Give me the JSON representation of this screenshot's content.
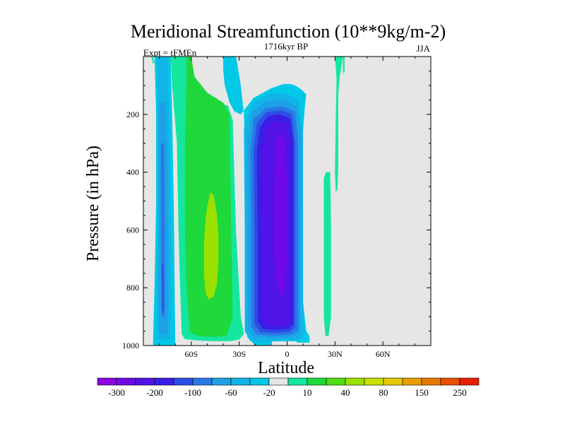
{
  "chart_data": {
    "type": "contour",
    "title": "Meridional Streamfunction (10**9kg/m-2)",
    "subtitle_center": "1716kyr BP",
    "subtitle_left": "Expt = tFMEn",
    "subtitle_right": "JJA",
    "xlabel": "Latitude",
    "ylabel": "Pressure (in hPa)",
    "xlim": [
      -90,
      90
    ],
    "ylim": [
      1000,
      0
    ],
    "x_ticks": [
      {
        "value": -60,
        "label": "60S"
      },
      {
        "value": -30,
        "label": "30S"
      },
      {
        "value": 0,
        "label": "0"
      },
      {
        "value": 30,
        "label": "30N"
      },
      {
        "value": 60,
        "label": "60N"
      }
    ],
    "y_ticks": [
      {
        "value": 200,
        "label": "200"
      },
      {
        "value": 400,
        "label": "400"
      },
      {
        "value": 600,
        "label": "600"
      },
      {
        "value": 800,
        "label": "800"
      },
      {
        "value": 1000,
        "label": "1000"
      }
    ],
    "missing_color": "#e6e6e6",
    "colorbar": {
      "colors": [
        "#8c00e6",
        "#6f0ae6",
        "#5214e6",
        "#3a1ee6",
        "#2a4ee6",
        "#2a78e6",
        "#1ea0e6",
        "#10b4e6",
        "#00c8e6",
        "#e6e6e6",
        "#14e6a0",
        "#1ed83c",
        "#50dc14",
        "#9ae100",
        "#c8e100",
        "#e6c800",
        "#e6a000",
        "#e67800",
        "#e65000",
        "#e61e00"
      ],
      "labels": [
        "-300",
        "-200",
        "-100",
        "-60",
        "-20",
        "10",
        "40",
        "80",
        "150",
        "250"
      ]
    },
    "regions": [
      {
        "name": "sh-cell-outer",
        "level": "-20 to -10",
        "color": "#00c8e6",
        "polygon": [
          [
            -40,
            0
          ],
          [
            -32,
            0
          ],
          [
            -31,
            30
          ],
          [
            -29,
            100
          ],
          [
            -27,
            200
          ],
          [
            -25,
            600
          ],
          [
            -25,
            970
          ],
          [
            -20,
            1000
          ],
          [
            -11,
            1000
          ],
          [
            -9,
            985
          ],
          [
            6,
            985
          ],
          [
            6,
            990
          ],
          [
            14,
            990
          ],
          [
            14,
            968
          ],
          [
            12,
            950
          ],
          [
            10,
            850
          ],
          [
            10,
            500
          ],
          [
            10,
            260
          ],
          [
            11,
            180
          ],
          [
            12,
            130
          ],
          [
            8,
            110
          ],
          [
            5,
            100
          ],
          [
            2,
            95
          ],
          [
            -2,
            95
          ],
          [
            -5,
            100
          ],
          [
            -10,
            110
          ],
          [
            -15,
            125
          ],
          [
            -21,
            143
          ],
          [
            -24,
            165
          ],
          [
            -29,
            200
          ],
          [
            -33,
            190
          ],
          [
            -36,
            160
          ],
          [
            -39,
            100
          ],
          [
            -40,
            50
          ]
        ]
      },
      {
        "name": "sh-cell-l30",
        "level": "-30 to -20",
        "color": "#10b4e6",
        "polygon": [
          [
            -27,
            250
          ],
          [
            -26.5,
            600
          ],
          [
            -26.5,
            950
          ],
          [
            -23,
            985
          ],
          [
            -15,
            988
          ],
          [
            -5,
            983
          ],
          [
            5,
            983
          ],
          [
            10,
            970
          ],
          [
            10,
            500
          ],
          [
            10,
            260
          ],
          [
            7,
            150
          ],
          [
            -2,
            125
          ],
          [
            -12,
            130
          ],
          [
            -22,
            165
          ]
        ]
      },
      {
        "name": "sh-cell-l40",
        "level": "-40 to -30",
        "color": "#1ea0e6",
        "polygon": [
          [
            -25,
            300
          ],
          [
            -24.5,
            600
          ],
          [
            -24.5,
            945
          ],
          [
            -21,
            970
          ],
          [
            -10,
            975
          ],
          [
            3,
            972
          ],
          [
            8,
            955
          ],
          [
            9,
            500
          ],
          [
            9,
            280
          ],
          [
            6,
            170
          ],
          [
            -3,
            150
          ],
          [
            -13,
            155
          ],
          [
            -22,
            190
          ]
        ]
      },
      {
        "name": "sh-cell-l60",
        "level": "-60 to -40",
        "color": "#2a78e6",
        "polygon": [
          [
            -23,
            330
          ],
          [
            -22.5,
            600
          ],
          [
            -22.5,
            935
          ],
          [
            -19,
            962
          ],
          [
            -8,
            966
          ],
          [
            3,
            962
          ],
          [
            7,
            945
          ],
          [
            7,
            500
          ],
          [
            7,
            300
          ],
          [
            5,
            190
          ],
          [
            -3,
            172
          ],
          [
            -13,
            178
          ],
          [
            -21,
            215
          ]
        ]
      },
      {
        "name": "sh-cell-l80",
        "level": "-80 to -60",
        "color": "#2a4ee6",
        "polygon": [
          [
            -21,
            330
          ],
          [
            -20.5,
            600
          ],
          [
            -20.5,
            925
          ],
          [
            -17,
            953
          ],
          [
            -7,
            957
          ],
          [
            2,
            952
          ],
          [
            5,
            935
          ],
          [
            5,
            500
          ],
          [
            5,
            300
          ],
          [
            3,
            200
          ],
          [
            -4,
            186
          ],
          [
            -13,
            192
          ],
          [
            -19,
            230
          ]
        ]
      },
      {
        "name": "sh-cell-l100",
        "level": "-100 to -80",
        "color": "#3a1ee6",
        "polygon": [
          [
            -19,
            330
          ],
          [
            -18.5,
            600
          ],
          [
            -18.5,
            915
          ],
          [
            -15,
            943
          ],
          [
            -7,
            947
          ],
          [
            1,
            942
          ],
          [
            4,
            925
          ],
          [
            4,
            500
          ],
          [
            4,
            300
          ],
          [
            2,
            215
          ],
          [
            -5,
            200
          ],
          [
            -12,
            206
          ],
          [
            -17,
            245
          ]
        ]
      },
      {
        "name": "sh-cell-l200",
        "level": "-200 to -100",
        "color": "#5214e6",
        "polygon": [
          [
            -16,
            330
          ],
          [
            -15.5,
            600
          ],
          [
            -15.5,
            900
          ],
          [
            -12,
            932
          ],
          [
            -6,
            936
          ],
          [
            0,
            930
          ],
          [
            2,
            910
          ],
          [
            2,
            500
          ],
          [
            2,
            300
          ],
          [
            0,
            235
          ],
          [
            -6,
            222
          ],
          [
            -11,
            228
          ],
          [
            -14,
            262
          ]
        ]
      },
      {
        "name": "sh-cell-core",
        "level": "-300 to -200",
        "color": "#6f0ae6",
        "polygon": [
          [
            -7,
            300
          ],
          [
            -8,
            450
          ],
          [
            -8,
            700
          ],
          [
            -6,
            800
          ],
          [
            -3,
            830
          ],
          [
            -1,
            800
          ],
          [
            0,
            700
          ],
          [
            0,
            450
          ],
          [
            -1,
            300
          ],
          [
            -3,
            265
          ],
          [
            -5,
            268
          ]
        ]
      },
      {
        "name": "sh-ferrel-cyan",
        "level": "-20 to -10",
        "color": "#00c8e6",
        "polygon": [
          [
            -83,
            0
          ],
          [
            -73,
            0
          ],
          [
            -72,
            200
          ],
          [
            -71,
            500
          ],
          [
            -70,
            1000
          ],
          [
            -84,
            1000
          ],
          [
            -83,
            800
          ],
          [
            -82,
            500
          ],
          [
            -82,
            200
          ]
        ]
      },
      {
        "name": "sh-ferrel-blue1",
        "level": "-30 to -20",
        "color": "#10b4e6",
        "polygon": [
          [
            -81.5,
            0
          ],
          [
            -75,
            0
          ],
          [
            -74,
            200
          ],
          [
            -73,
            500
          ],
          [
            -72.5,
            800
          ],
          [
            -73,
            980
          ],
          [
            -81,
            980
          ],
          [
            -81.5,
            800
          ],
          [
            -81,
            500
          ],
          [
            -81,
            200
          ]
        ]
      },
      {
        "name": "sh-ferrel-blue2",
        "level": "-40 to -30",
        "color": "#1ea0e6",
        "polygon": [
          [
            -80,
            160
          ],
          [
            -76,
            160
          ],
          [
            -75,
            400
          ],
          [
            -74.5,
            800
          ],
          [
            -75,
            960
          ],
          [
            -80,
            960
          ],
          [
            -80.5,
            800
          ],
          [
            -80,
            400
          ]
        ]
      },
      {
        "name": "sh-ferrel-blue3",
        "level": "-60 to -40",
        "color": "#2a78e6",
        "polygon": [
          [
            -79,
            300
          ],
          [
            -77,
            300
          ],
          [
            -76.5,
            600
          ],
          [
            -76.5,
            900
          ],
          [
            -78.5,
            900
          ],
          [
            -79,
            600
          ]
        ]
      },
      {
        "name": "sh-ferrel-deep",
        "level": "-80 to -60",
        "color": "#2a4ee6",
        "polygon": [
          [
            -78.5,
            720
          ],
          [
            -77.5,
            720
          ],
          [
            -77.3,
            880
          ],
          [
            -78.3,
            880
          ]
        ]
      },
      {
        "name": "mid-lat-cyan",
        "level": "10 to 20",
        "color": "#14e6a0",
        "polygon": [
          [
            -73,
            0
          ],
          [
            -63,
            0
          ],
          [
            -62,
            20
          ],
          [
            -62,
            50
          ],
          [
            -55,
            100
          ],
          [
            -48,
            150
          ],
          [
            -43,
            160
          ],
          [
            -37,
            170
          ],
          [
            -34,
            220
          ],
          [
            -32,
            600
          ],
          [
            -29,
            900
          ],
          [
            -27,
            960
          ],
          [
            -30,
            980
          ],
          [
            -36,
            985
          ],
          [
            -45,
            985
          ],
          [
            -55,
            983
          ],
          [
            -64,
            978
          ],
          [
            -66,
            960
          ],
          [
            -67,
            800
          ],
          [
            -68,
            600
          ],
          [
            -69,
            300
          ],
          [
            -72,
            100
          ]
        ]
      },
      {
        "name": "mid-lat-green",
        "level": "20 to 40",
        "color": "#1ed83c",
        "polygon": [
          [
            -63,
            0
          ],
          [
            -60,
            0
          ],
          [
            -58,
            70
          ],
          [
            -50,
            125
          ],
          [
            -40,
            160
          ],
          [
            -36,
            200
          ],
          [
            -35,
            600
          ],
          [
            -34,
            900
          ],
          [
            -38,
            968
          ],
          [
            -45,
            970
          ],
          [
            -55,
            968
          ],
          [
            -61,
            955
          ],
          [
            -63,
            800
          ],
          [
            -64,
            600
          ],
          [
            -64,
            300
          ],
          [
            -63,
            100
          ]
        ]
      },
      {
        "name": "mid-lat-lgreen",
        "level": "40 to 60",
        "color": "#9ae100",
        "polygon": [
          [
            -51,
            560
          ],
          [
            -50,
            520
          ],
          [
            -48,
            470
          ],
          [
            -46,
            480
          ],
          [
            -44,
            540
          ],
          [
            -43,
            620
          ],
          [
            -43,
            720
          ],
          [
            -44,
            790
          ],
          [
            -46,
            830
          ],
          [
            -49,
            840
          ],
          [
            -51,
            820
          ],
          [
            -52,
            760
          ],
          [
            -52,
            640
          ]
        ]
      },
      {
        "name": "nh-green-strip",
        "level": "10 to 20",
        "color": "#14e6a0",
        "polygon": [
          [
            23,
            420
          ],
          [
            24.5,
            400
          ],
          [
            27,
            400
          ],
          [
            27.5,
            600
          ],
          [
            27.5,
            900
          ],
          [
            26,
            965
          ],
          [
            24,
            968
          ],
          [
            23,
            900
          ]
        ]
      },
      {
        "name": "nh-green-strip-2",
        "level": "10 to 20",
        "color": "#14e6a0",
        "polygon": [
          [
            24,
            430
          ],
          [
            23.5,
            600
          ],
          [
            23,
            800
          ],
          [
            24,
            880
          ],
          [
            25,
            900
          ],
          [
            26,
            880
          ],
          [
            26,
            600
          ],
          [
            25.5,
            430
          ]
        ]
      },
      {
        "name": "nh-green-strip-3",
        "level": "10 to 20",
        "color": "#14e6a0",
        "polygon": [
          [
            30,
            0
          ],
          [
            35,
            0
          ],
          [
            33,
            70
          ],
          [
            32,
            130
          ],
          [
            32,
            380
          ],
          [
            31.5,
            460
          ],
          [
            30.5,
            470
          ],
          [
            30,
            400
          ],
          [
            30.5,
            200
          ],
          [
            31,
            80
          ]
        ]
      },
      {
        "name": "nh-green-strip-4",
        "level": "10 to 20",
        "color": "#14e6a0",
        "polygon": [
          [
            35,
            0
          ],
          [
            36,
            0
          ],
          [
            36,
            50
          ],
          [
            35.5,
            60
          ],
          [
            35,
            50
          ]
        ]
      },
      {
        "name": "nh-green-pole",
        "level": "10 to 20",
        "color": "#14e6a0",
        "polygon": [
          [
            -85,
            0
          ],
          [
            -84,
            0
          ],
          [
            -83,
            20
          ],
          [
            -84,
            25
          ]
        ]
      }
    ]
  }
}
